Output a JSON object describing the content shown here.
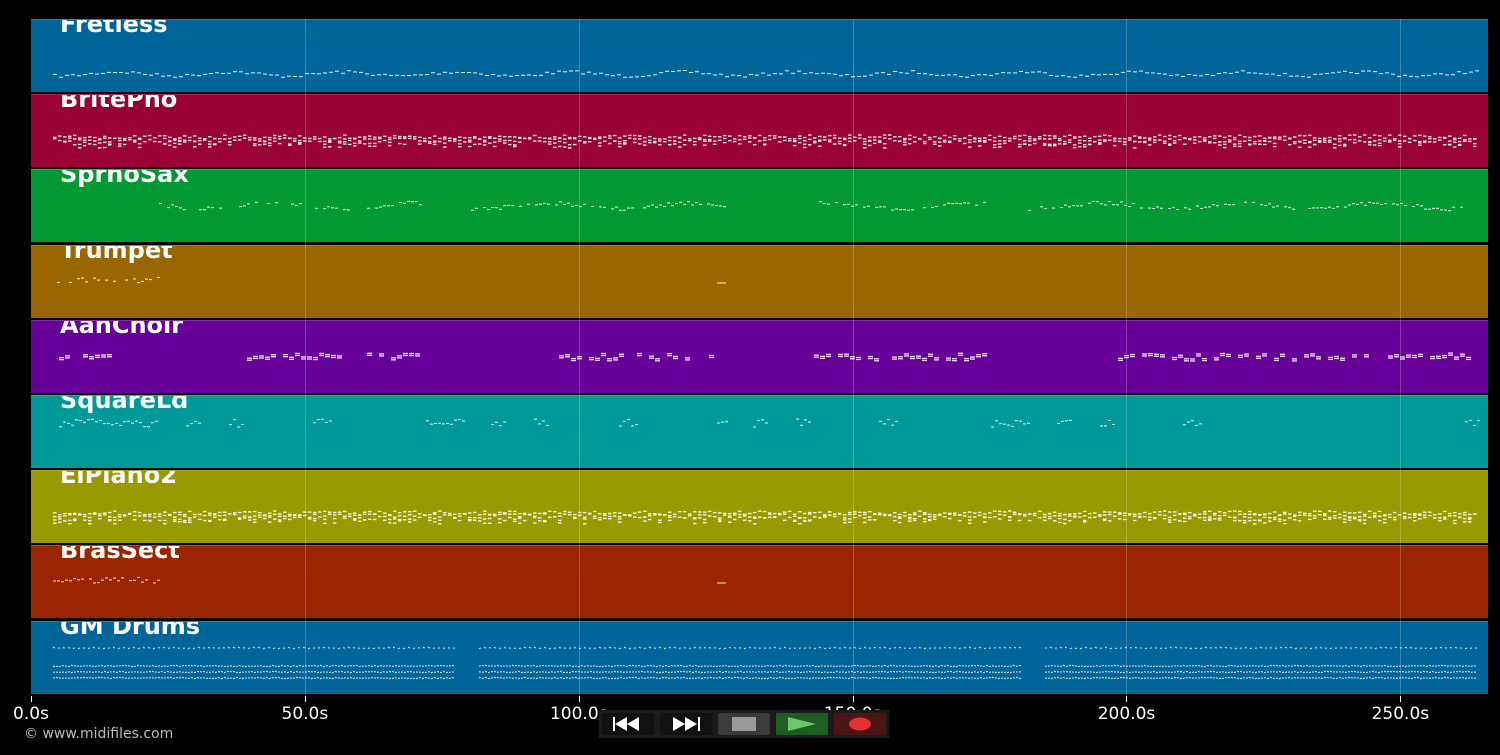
{
  "tracks": [
    {
      "name": "Fretless",
      "color": "#006699",
      "pattern": "line"
    },
    {
      "name": "BritePno",
      "color": "#990033",
      "pattern": "chords"
    },
    {
      "name": "SprnoSax",
      "color": "#009933",
      "pattern": "melody"
    },
    {
      "name": "Trumpet",
      "color": "#996600",
      "pattern": "intro"
    },
    {
      "name": "AahChoir",
      "color": "#660099",
      "pattern": "pads"
    },
    {
      "name": "SquareLd",
      "color": "#009999",
      "pattern": "lead"
    },
    {
      "name": "ElPiano2",
      "color": "#999900",
      "pattern": "chords"
    },
    {
      "name": "BrasSect",
      "color": "#992600",
      "pattern": "intro"
    },
    {
      "name": "GM Drums",
      "color": "#006699",
      "pattern": "drums"
    }
  ],
  "timeline": {
    "ticks": [
      "0.0s",
      "50.0s",
      "100.0s",
      "150.0s",
      "200.0s",
      "250.0s"
    ],
    "tick_seconds": [
      0,
      50,
      100,
      150,
      200,
      250
    ],
    "duration_seconds": 266
  },
  "copyright": "© www.midifiles.com",
  "transport": {
    "rewind_icon": "rewind-icon",
    "forward_icon": "fast-forward-icon",
    "stop_icon": "stop-icon",
    "play_icon": "play-icon",
    "record_icon": "record-icon"
  }
}
